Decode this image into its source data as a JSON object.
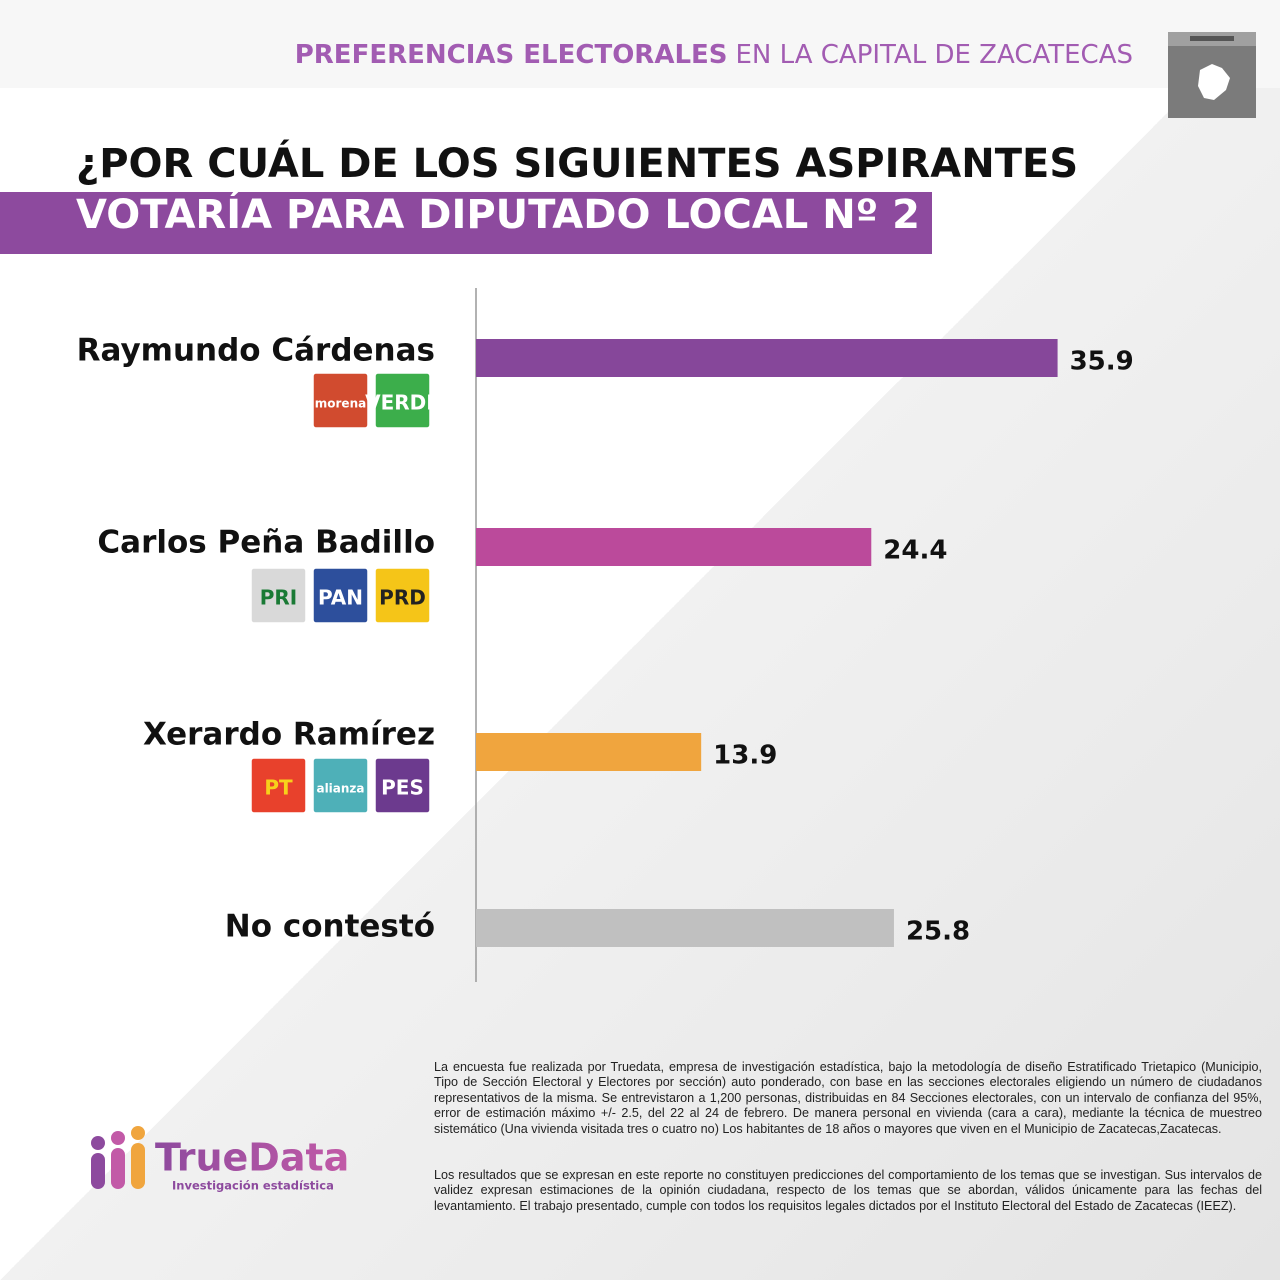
{
  "header": {
    "bold": "PREFERENCIAS ELECTORALES",
    "rest": "EN LA CAPITAL DE ZACATECAS"
  },
  "question": {
    "line1": "¿POR CUÁL DE LOS SIGUIENTES ASPIRANTES",
    "line2": "VOTARÍA PARA DIPUTADO LOCAL Nº 2 ?"
  },
  "chart_data": {
    "type": "bar",
    "orientation": "horizontal",
    "categories": [
      "Raymundo Cárdenas",
      "Carlos Peña Badillo",
      "Xerardo Ramírez",
      "No contestó"
    ],
    "values": [
      35.9,
      24.4,
      13.9,
      25.8
    ],
    "colors": [
      "#86479a",
      "#bb4a9b",
      "#f0a53e",
      "#c0c0c0"
    ],
    "xlim": [
      0,
      45
    ],
    "party_logos": [
      [
        "morena",
        "VERDE"
      ],
      [
        "PRI",
        "PAN",
        "PRD"
      ],
      [
        "PT",
        "alianza",
        "PES"
      ]
    ]
  },
  "logo": {
    "name": "TrueData",
    "tagline": "Investigación estadística"
  },
  "footnote": [
    "La encuesta fue realizada por Truedata, empresa de investigación estadística, bajo la metodología de diseño Estratificado Trietapico (Municipio, Tipo de Sección Electoral y Electores por sección) auto ponderado, con base en las secciones electorales eligiendo un número de ciudadanos representativos de la misma. Se entrevistaron a 1,200 personas, distribuidas en 84 Secciones electorales, con un intervalo de confianza del 95%, error de estimación máximo +/- 2.5, del 22 al 24 de febrero. De manera personal en vivienda (cara a cara), mediante la técnica de muestreo sistemático (Una vivienda visitada tres o cuatro no) Los habitantes de 18 años o mayores que viven en el Municipio de Zacatecas,Zacatecas.",
    "Los resultados que se expresan en este reporte no constituyen predicciones del comportamiento de los temas que se investigan. Sus intervalos de validez expresan estimaciones de la opinión ciudadana, respecto de los temas que se abordan, válidos únicamente para las fechas del levantamiento. El trabajo presentado, cumple con todos los requisitos legales dictados por el Instituto Electoral del Estado de Zacatecas (IEEZ)."
  ]
}
